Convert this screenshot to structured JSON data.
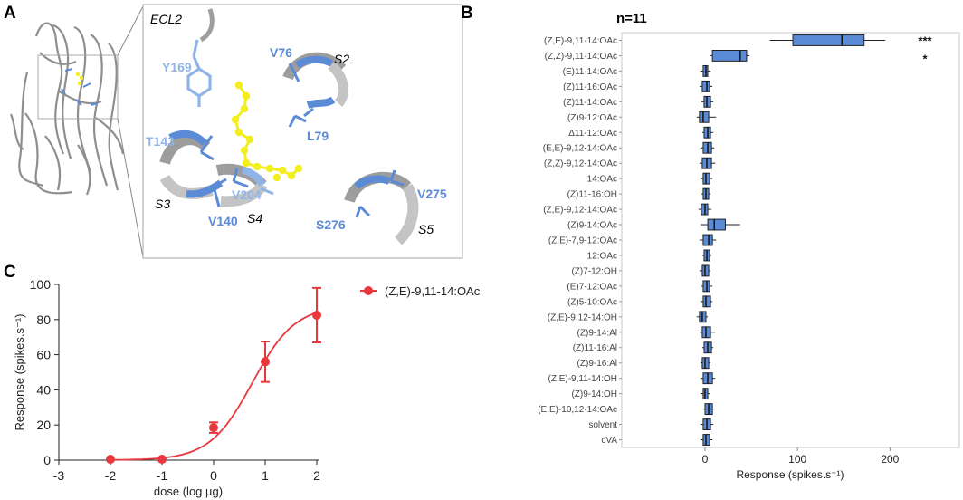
{
  "panel_a": {
    "letter": "A",
    "labels": {
      "ecl2": "ECL2",
      "y169": "Y169",
      "v76": "V76",
      "s2": "S2",
      "l79": "L79",
      "t143": "T143",
      "s3": "S3",
      "v204": "V204",
      "s4": "S4",
      "v140": "V140",
      "v275": "V275",
      "s276": "S276",
      "s5": "S5"
    },
    "colors": {
      "helix": "#9d9d9d",
      "residue_light": "#8fb4e8",
      "residue_dark": "#5b8ad6",
      "ligand": "#f2ee1f"
    }
  },
  "chart_data": [
    {
      "panel": "B",
      "type": "box",
      "orientation": "horizontal",
      "title": "n=11",
      "xlabel": "Response (spikes.s⁻¹)",
      "xlim": [
        -90,
        275
      ],
      "xticks": [
        0,
        100,
        200
      ],
      "grid": false,
      "box_color": "#5b8ad6",
      "categories": [
        {
          "label": "(Z,E)-9,11-14:OAc",
          "q1": 95,
          "median": 148,
          "q3": 172,
          "wmin": 70,
          "wmax": 195,
          "sig": "***"
        },
        {
          "label": "(Z,Z)-9,11-14:OAc",
          "q1": 8,
          "median": 38,
          "q3": 45,
          "wmin": 5,
          "wmax": 48,
          "sig": "*"
        },
        {
          "label": "(E)11-14:OAc",
          "q1": -2,
          "median": 1,
          "q3": 3,
          "wmin": -5,
          "wmax": 6,
          "sig": ""
        },
        {
          "label": "(Z)11-16:OAc",
          "q1": -3,
          "median": 2,
          "q3": 5,
          "wmin": -6,
          "wmax": 8,
          "sig": ""
        },
        {
          "label": "(Z)11-14:OAc",
          "q1": -1,
          "median": 2,
          "q3": 6,
          "wmin": -4,
          "wmax": 9,
          "sig": ""
        },
        {
          "label": "(Z)9-12:OAc",
          "q1": -6,
          "median": -2,
          "q3": 4,
          "wmin": -9,
          "wmax": 12,
          "sig": ""
        },
        {
          "label": "Δ11-12:OAc",
          "q1": -1,
          "median": 3,
          "q3": 6,
          "wmin": -3,
          "wmax": 9,
          "sig": ""
        },
        {
          "label": "(E,E)-9,12-14:OAc",
          "q1": -2,
          "median": 3,
          "q3": 7,
          "wmin": -5,
          "wmax": 10,
          "sig": ""
        },
        {
          "label": "(Z,Z)-9,12-14:OAc",
          "q1": -3,
          "median": 2,
          "q3": 7,
          "wmin": -6,
          "wmax": 11,
          "sig": ""
        },
        {
          "label": "14:OAc",
          "q1": -2,
          "median": 1,
          "q3": 5,
          "wmin": -5,
          "wmax": 8,
          "sig": ""
        },
        {
          "label": "(Z)11-16:OH",
          "q1": -2,
          "median": 1,
          "q3": 4,
          "wmin": -4,
          "wmax": 6,
          "sig": ""
        },
        {
          "label": "(Z,E)-9,12-14:OAc",
          "q1": -4,
          "median": 0,
          "q3": 3,
          "wmin": -7,
          "wmax": 7,
          "sig": ""
        },
        {
          "label": "(Z)9-14:OAc",
          "q1": 3,
          "median": 10,
          "q3": 22,
          "wmin": -5,
          "wmax": 38,
          "sig": ""
        },
        {
          "label": "(Z,E)-7,9-12:OAc",
          "q1": -2,
          "median": 4,
          "q3": 8,
          "wmin": -6,
          "wmax": 12,
          "sig": ""
        },
        {
          "label": "12:OAc",
          "q1": -1,
          "median": 2,
          "q3": 5,
          "wmin": -3,
          "wmax": 7,
          "sig": ""
        },
        {
          "label": "(Z)7-12:OH",
          "q1": -3,
          "median": 0,
          "q3": 4,
          "wmin": -6,
          "wmax": 6,
          "sig": ""
        },
        {
          "label": "(E)7-12:OAc",
          "q1": -2,
          "median": 2,
          "q3": 5,
          "wmin": -4,
          "wmax": 8,
          "sig": ""
        },
        {
          "label": "(Z)5-10:OAc",
          "q1": -2,
          "median": 1,
          "q3": 6,
          "wmin": -5,
          "wmax": 8,
          "sig": ""
        },
        {
          "label": "(Z,E)-9,12-14:OH",
          "q1": -6,
          "median": -3,
          "q3": 1,
          "wmin": -9,
          "wmax": 3,
          "sig": ""
        },
        {
          "label": "(Z)9-14:Al",
          "q1": -3,
          "median": 1,
          "q3": 6,
          "wmin": -6,
          "wmax": 11,
          "sig": ""
        },
        {
          "label": "(Z)11-16:Al",
          "q1": -1,
          "median": 3,
          "q3": 7,
          "wmin": -3,
          "wmax": 9,
          "sig": ""
        },
        {
          "label": "(Z)9-16:Al",
          "q1": -3,
          "median": 0,
          "q3": 4,
          "wmin": -5,
          "wmax": 6,
          "sig": ""
        },
        {
          "label": "(Z,E)-9,11-14:OH",
          "q1": -2,
          "median": 3,
          "q3": 8,
          "wmin": -5,
          "wmax": 11,
          "sig": ""
        },
        {
          "label": "(Z)9-14:OH",
          "q1": -2,
          "median": 0,
          "q3": 3,
          "wmin": -5,
          "wmax": 5,
          "sig": ""
        },
        {
          "label": "(E,E)-10,12-14:OAc",
          "q1": 0,
          "median": 4,
          "q3": 8,
          "wmin": -3,
          "wmax": 11,
          "sig": ""
        },
        {
          "label": "solvent",
          "q1": -2,
          "median": 2,
          "q3": 6,
          "wmin": -5,
          "wmax": 9,
          "sig": ""
        },
        {
          "label": "cVA",
          "q1": -2,
          "median": 1,
          "q3": 5,
          "wmin": -5,
          "wmax": 8,
          "sig": ""
        }
      ]
    },
    {
      "panel": "C",
      "type": "line",
      "xlabel": "dose (log µg)",
      "ylabel": "Response (spikes.s⁻¹)",
      "xlim": [
        -3,
        2.2
      ],
      "ylim": [
        0,
        100
      ],
      "xticks": [
        -3,
        -2,
        -1,
        0,
        1,
        2
      ],
      "yticks": [
        0,
        20,
        40,
        60,
        80,
        100
      ],
      "grid": false,
      "legend_position": "top-right",
      "color": "#e8373d",
      "series": [
        {
          "name": "(Z,E)-9,11-14:OAc",
          "x": [
            -2,
            -1,
            0,
            1,
            2
          ],
          "y": [
            0.5,
            0.5,
            18.5,
            56,
            82.5
          ],
          "err": [
            0.5,
            0.5,
            3,
            11.5,
            15.5
          ]
        }
      ]
    }
  ]
}
